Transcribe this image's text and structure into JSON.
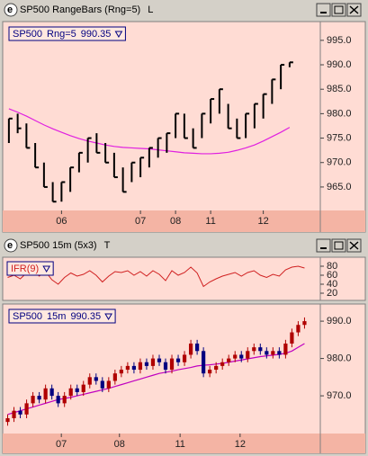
{
  "windows": [
    {
      "title": "SP500 RangeBars (Rng=5)",
      "flag": "L",
      "chart_data": {
        "type": "ohlc",
        "legend": {
          "symbol": "SP500",
          "params": "Rng=5",
          "value": "990.35"
        },
        "x": [
          0,
          1,
          2,
          3,
          4,
          5,
          6,
          7,
          8,
          9,
          10,
          11,
          12,
          13,
          14,
          15,
          16,
          17,
          18,
          19,
          20,
          21,
          22,
          23,
          24,
          25,
          26,
          27,
          28,
          29,
          30,
          31,
          32
        ],
        "high": [
          979,
          980,
          978,
          974,
          970,
          966,
          966,
          969,
          972,
          975,
          976,
          974,
          972,
          969,
          970,
          971,
          973,
          975,
          976,
          980,
          980,
          977,
          980,
          983,
          985,
          982,
          979,
          980,
          982,
          984,
          987,
          990,
          990.5
        ],
        "low": [
          974,
          976,
          973,
          969,
          965,
          962,
          962,
          964,
          968,
          970,
          972,
          970,
          967,
          964,
          966,
          967,
          969,
          971,
          972,
          975,
          975,
          973,
          975,
          978,
          980,
          977,
          975,
          975,
          977,
          979,
          982,
          985,
          989.5
        ],
        "close": [
          979,
          977,
          973,
          969,
          965,
          962,
          966,
          969,
          972,
          975,
          972,
          970,
          967,
          964,
          970,
          971,
          973,
          975,
          976,
          980,
          975,
          973,
          980,
          983,
          985,
          977,
          975,
          980,
          982,
          984,
          987,
          990,
          990.5
        ],
        "color": "#000000",
        "overlay": {
          "color": "#e020e0",
          "values": [
            981,
            980.3,
            979.5,
            978.6,
            977.7,
            976.9,
            976.2,
            975.5,
            974.9,
            974.4,
            974,
            973.6,
            973.3,
            973.1,
            973,
            972.9,
            972.8,
            972.6,
            972.4,
            972.2,
            972,
            971.9,
            971.8,
            971.8,
            971.9,
            972.1,
            972.5,
            973,
            973.6,
            974.4,
            975.3,
            976.2,
            977.2
          ]
        },
        "xlim": [
          -0.5,
          35.5
        ],
        "xticks": [
          {
            "value": 6,
            "label": "06"
          },
          {
            "value": 15,
            "label": "07"
          },
          {
            "value": 19,
            "label": "08"
          },
          {
            "value": 23,
            "label": "11"
          },
          {
            "value": 29,
            "label": "12"
          }
        ],
        "ylim": [
          960.2,
          998.1
        ],
        "yticks": [
          {
            "value": 965,
            "label": "965.0"
          },
          {
            "value": 970,
            "label": "970.0"
          },
          {
            "value": 975,
            "label": "975.0"
          },
          {
            "value": 980,
            "label": "980.0"
          },
          {
            "value": 985,
            "label": "985.0"
          },
          {
            "value": 990,
            "label": "990.0"
          },
          {
            "value": 995,
            "label": "995.0"
          }
        ]
      }
    },
    {
      "title": "SP500 15m (5x3)",
      "flag": "T",
      "chart_data": [
        {
          "type": "line",
          "legend": {
            "symbol": "IFR(9)"
          },
          "color": "#d02020",
          "values": [
            55,
            60,
            52,
            65,
            70,
            58,
            68,
            50,
            40,
            55,
            65,
            58,
            62,
            70,
            60,
            45,
            58,
            68,
            66,
            70,
            60,
            68,
            58,
            70,
            62,
            48,
            70,
            60,
            66,
            78,
            65,
            35,
            45,
            52,
            58,
            62,
            66,
            58,
            66,
            70,
            60,
            55,
            62,
            58,
            72,
            78,
            80,
            76
          ],
          "xlim": [
            -0.5,
            49.5
          ],
          "ylim": [
            4,
            100
          ],
          "yticks": [
            20,
            40,
            60,
            80
          ]
        },
        {
          "type": "candlestick",
          "legend": {
            "symbol": "SP500",
            "params": "15m",
            "value": "990.35"
          },
          "open": [
            963,
            964,
            966,
            965,
            968,
            970,
            969,
            972,
            970,
            968,
            970,
            972,
            971,
            973,
            975,
            974,
            972,
            974,
            976,
            977,
            978,
            977,
            979,
            978,
            980,
            979,
            977,
            980,
            979,
            981,
            984,
            982,
            976,
            977,
            978,
            979,
            980,
            981,
            980,
            982,
            983,
            982,
            981,
            982,
            981,
            984,
            987,
            989
          ],
          "high": [
            965,
            967,
            967,
            969,
            971,
            971,
            973,
            973,
            971,
            971,
            973,
            973,
            974,
            976,
            976,
            975,
            975,
            977,
            978,
            979,
            979,
            980,
            980,
            981,
            981,
            980,
            981,
            981,
            982,
            985,
            985,
            983,
            978,
            979,
            980,
            981,
            982,
            982,
            983,
            984,
            984,
            983,
            983,
            983,
            985,
            988,
            990,
            991
          ],
          "low": [
            962,
            963,
            964,
            964,
            967,
            968,
            968,
            969,
            967,
            967,
            969,
            970,
            970,
            972,
            973,
            971,
            971,
            973,
            975,
            976,
            976,
            976,
            977,
            977,
            978,
            976,
            976,
            978,
            978,
            980,
            981,
            975,
            975,
            976,
            977,
            978,
            979,
            979,
            979,
            981,
            981,
            980,
            980,
            980,
            980,
            983,
            986,
            988
          ],
          "close": [
            964,
            966,
            965,
            968,
            970,
            969,
            972,
            970,
            968,
            970,
            972,
            971,
            973,
            975,
            974,
            972,
            974,
            976,
            977,
            978,
            977,
            979,
            978,
            980,
            979,
            977,
            980,
            979,
            981,
            984,
            982,
            976,
            977,
            978,
            979,
            980,
            981,
            980,
            982,
            983,
            982,
            981,
            982,
            981,
            984,
            987,
            989,
            990
          ],
          "up_color": "#b00000",
          "down_color": "#000080",
          "overlay": {
            "color": "#c000c0",
            "values": [
              965,
              965.5,
              966,
              966.5,
              967,
              967.5,
              968,
              968.5,
              969,
              969.3,
              969.6,
              970,
              970.4,
              970.8,
              971.2,
              971.6,
              972,
              972.5,
              973,
              973.5,
              974,
              974.5,
              975,
              975.5,
              976,
              976.3,
              976.6,
              977,
              977.3,
              977.6,
              978,
              978.2,
              978.3,
              978.5,
              978.7,
              979,
              979.3,
              979.6,
              979.9,
              980.2,
              980.5,
              980.7,
              980.9,
              981.1,
              981.4,
              982,
              983,
              984
            ]
          },
          "xlim": [
            -0.5,
            49.5
          ],
          "xticks": [
            {
              "value": 8.5,
              "label": "07"
            },
            {
              "value": 17.7,
              "label": "08"
            },
            {
              "value": 27.3,
              "label": "11"
            },
            {
              "value": 36.8,
              "label": "12"
            }
          ],
          "ylim": [
            959.9,
            994.6
          ],
          "yticks": [
            {
              "value": 970,
              "label": "970.0"
            },
            {
              "value": 980,
              "label": "980.0"
            },
            {
              "value": 990,
              "label": "990.0"
            }
          ]
        }
      ]
    }
  ]
}
